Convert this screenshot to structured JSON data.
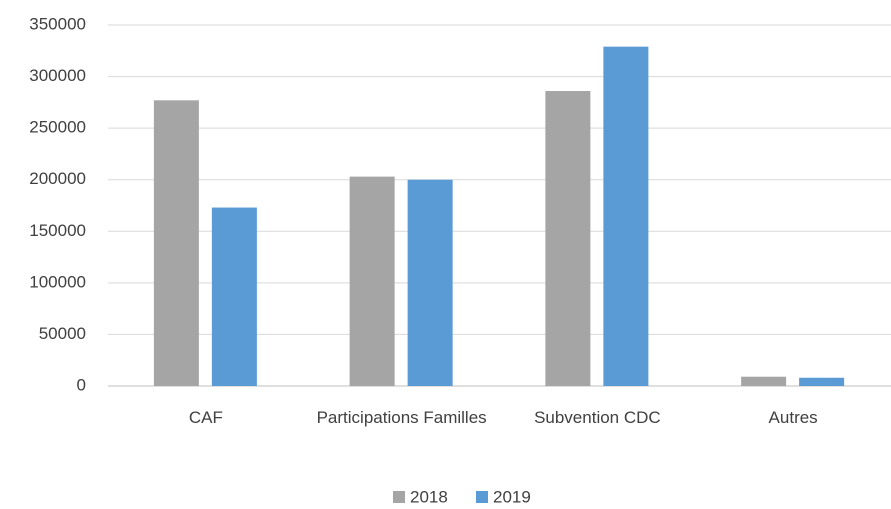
{
  "chart_data": {
    "type": "bar",
    "categories": [
      "CAF",
      "Participations Familles",
      "Subvention CDC",
      "Autres"
    ],
    "series": [
      {
        "name": "2018",
        "color": "#a5a5a5",
        "values": [
          277000,
          203000,
          286000,
          9000
        ]
      },
      {
        "name": "2019",
        "color": "#5b9bd5",
        "values": [
          173000,
          200000,
          329000,
          8000
        ]
      }
    ],
    "ylim": [
      0,
      350000
    ],
    "yticks": [
      0,
      50000,
      100000,
      150000,
      200000,
      250000,
      300000,
      350000
    ],
    "grid": true,
    "legend": "bottom"
  }
}
